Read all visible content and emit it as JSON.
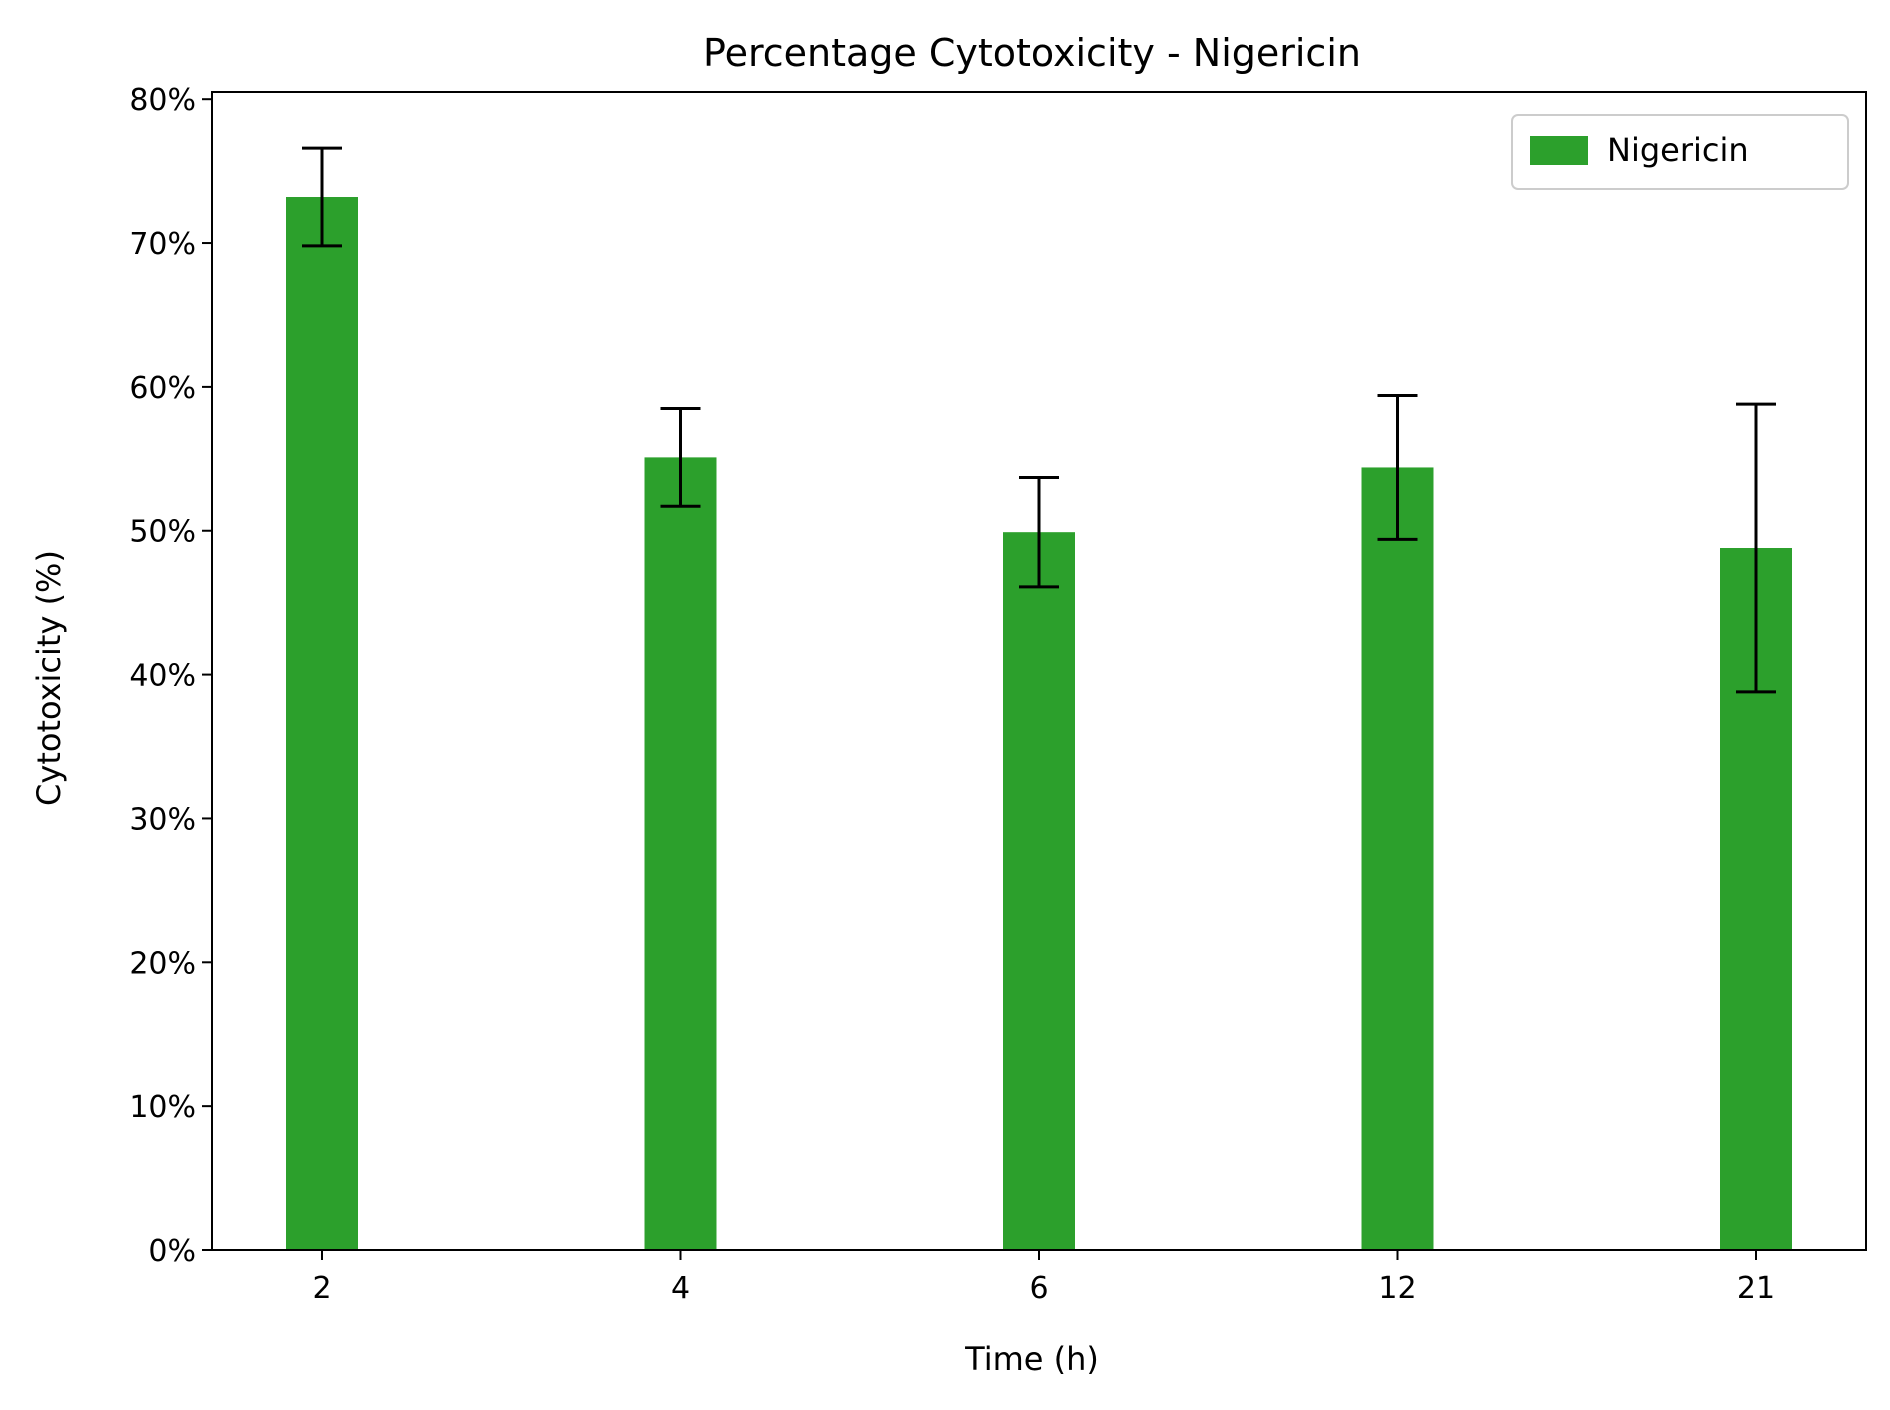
{
  "chart_data": {
    "type": "bar",
    "title": "Percentage Cytotoxicity - Nigericin",
    "xlabel": "Time (h)",
    "ylabel": "Cytotoxicity (%)",
    "categories": [
      "2",
      "4",
      "6",
      "12",
      "21"
    ],
    "series": [
      {
        "name": "Nigericin",
        "values": [
          73.2,
          55.1,
          49.9,
          54.4,
          48.8
        ],
        "error_low": [
          69.8,
          51.7,
          46.1,
          49.4,
          38.8
        ],
        "error_high": [
          76.6,
          58.5,
          53.7,
          59.4,
          58.8
        ],
        "color": "#2ca02c"
      }
    ],
    "ylim": [
      0,
      80.5
    ],
    "yticks": [
      0,
      10,
      20,
      30,
      40,
      50,
      60,
      70,
      80
    ],
    "ytick_labels": [
      "0%",
      "10%",
      "20%",
      "30%",
      "40%",
      "50%",
      "60%",
      "70%",
      "80%"
    ],
    "grid": false,
    "legend_position": "top-right"
  }
}
